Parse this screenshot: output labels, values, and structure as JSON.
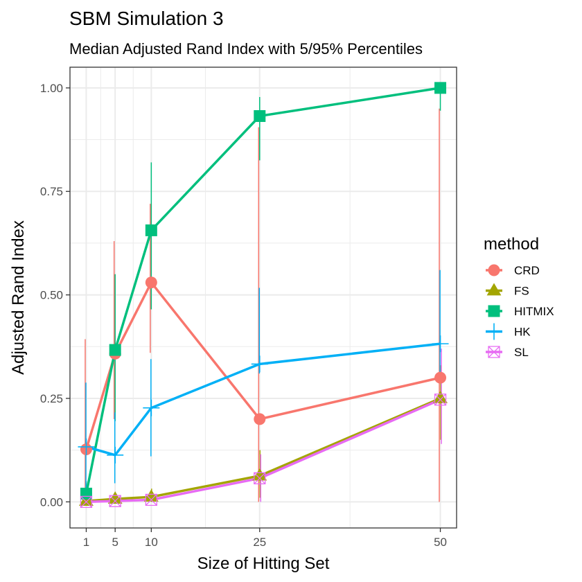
{
  "chart_data": {
    "type": "line",
    "title": "SBM Simulation 3",
    "subtitle": "Median Adjusted Rand Index with 5/95% Percentiles",
    "xlabel": "Size of Hitting Set",
    "ylabel": "Adjusted Rand Index",
    "x": [
      1,
      5,
      10,
      25,
      50
    ],
    "xlim": [
      -1.25,
      52.25
    ],
    "ylim": [
      -0.063,
      1.05
    ],
    "x_ticks": [
      1,
      5,
      10,
      25,
      50
    ],
    "x_tick_labels": [
      "1",
      "5",
      "10",
      "25",
      "50"
    ],
    "y_ticks": [
      0,
      0.25,
      0.5,
      0.75,
      1.0
    ],
    "y_tick_labels": [
      "0.00",
      "0.25",
      "0.50",
      "0.75",
      "1.00"
    ],
    "grid": true,
    "legend_title": "method",
    "legend_position": "right",
    "series": [
      {
        "name": "CRD",
        "color": "#F8766D",
        "shape": "circle",
        "values": [
          0.127,
          0.358,
          0.53,
          0.2,
          0.3
        ],
        "lower": [
          0.0,
          0.2,
          0.36,
          0.0,
          0.0
        ],
        "upper": [
          0.393,
          0.63,
          0.72,
          0.905,
          0.95
        ]
      },
      {
        "name": "FS",
        "color": "#A3A500",
        "shape": "triangle",
        "values": [
          0.002,
          0.007,
          0.012,
          0.063,
          0.25
        ],
        "lower": [
          0.0,
          0.0,
          0.0,
          0.01,
          0.15
        ],
        "upper": [
          0.01,
          0.02,
          0.032,
          0.125,
          0.33
        ]
      },
      {
        "name": "HITMIX",
        "color": "#00BF7D",
        "shape": "square",
        "values": [
          0.02,
          0.367,
          0.656,
          0.932,
          1.0
        ],
        "lower": [
          0.0,
          0.195,
          0.465,
          0.825,
          0.945
        ],
        "upper": [
          0.05,
          0.55,
          0.82,
          0.978,
          1.0
        ]
      },
      {
        "name": "HK",
        "color": "#00B0F6",
        "shape": "plus",
        "values": [
          0.133,
          0.113,
          0.227,
          0.333,
          0.382
        ],
        "lower": [
          0.0,
          0.045,
          0.11,
          0.31,
          0.3
        ],
        "upper": [
          0.288,
          0.216,
          0.345,
          0.517,
          0.56
        ]
      },
      {
        "name": "SL",
        "color": "#E76BF3",
        "shape": "square-x",
        "values": [
          0.0,
          0.002,
          0.005,
          0.057,
          0.247
        ],
        "lower": [
          0.0,
          0.0,
          0.0,
          0.0,
          0.14
        ],
        "upper": [
          0.005,
          0.012,
          0.02,
          0.115,
          0.37
        ]
      }
    ]
  }
}
